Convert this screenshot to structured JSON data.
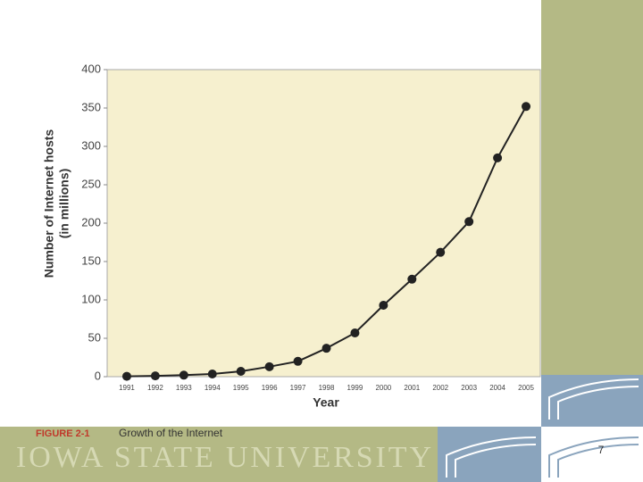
{
  "chart_data": {
    "type": "line",
    "figure_label": "FIGURE 2-1",
    "caption": "Growth of the Internet",
    "xlabel": "Year",
    "ylabel": [
      "Number of Internet hosts",
      "(in millions)"
    ],
    "categories": [
      "1991",
      "1992",
      "1993",
      "1994",
      "1995",
      "1996",
      "1997",
      "1998",
      "1999",
      "2000",
      "2001",
      "2002",
      "2003",
      "2004",
      "2005"
    ],
    "values": [
      0.5,
      1,
      2,
      3.5,
      7,
      13,
      20,
      37,
      57,
      93,
      127,
      162,
      202,
      285,
      352
    ],
    "color": "#222222",
    "ylim": [
      0,
      400
    ],
    "yticks": [
      0,
      50,
      100,
      150,
      200,
      250,
      300,
      350,
      400
    ],
    "grid": false
  },
  "footer": "IOWA STATE UNIVERSITY",
  "page_number": "7"
}
